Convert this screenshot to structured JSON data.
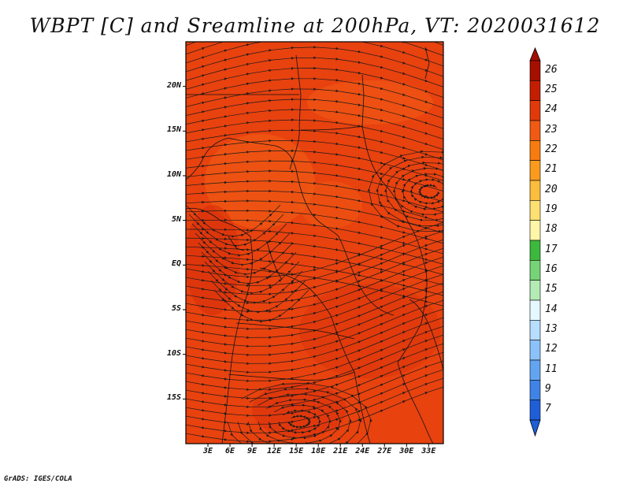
{
  "title": "WBPT [C] and Sreamline at 200hPa, VT: 2020031612",
  "credit": "GrADS: IGES/COLA",
  "map": {
    "lon_range": [
      0,
      35
    ],
    "lat_range": [
      -20,
      25
    ],
    "y_ticks": [
      {
        "value": 20,
        "label": "20N"
      },
      {
        "value": 15,
        "label": "15N"
      },
      {
        "value": 10,
        "label": "10N"
      },
      {
        "value": 5,
        "label": "5N"
      },
      {
        "value": 0,
        "label": "EQ"
      },
      {
        "value": -5,
        "label": "5S"
      },
      {
        "value": -10,
        "label": "10S"
      },
      {
        "value": -15,
        "label": "15S"
      }
    ],
    "x_ticks": [
      {
        "value": 3,
        "label": "3E"
      },
      {
        "value": 6,
        "label": "6E"
      },
      {
        "value": 9,
        "label": "9E"
      },
      {
        "value": 12,
        "label": "12E"
      },
      {
        "value": 15,
        "label": "15E"
      },
      {
        "value": 18,
        "label": "18E"
      },
      {
        "value": 21,
        "label": "21E"
      },
      {
        "value": 24,
        "label": "24E"
      },
      {
        "value": 27,
        "label": "27E"
      },
      {
        "value": 30,
        "label": "30E"
      },
      {
        "value": 33,
        "label": "33E"
      }
    ],
    "field_colors": {
      "base": "#e8420f",
      "warm": "#f05a14",
      "hot": "#d42a0a"
    },
    "streamline_color": "#1a1a1a"
  },
  "colorbar": {
    "labels": [
      "26",
      "25",
      "24",
      "23",
      "22",
      "21",
      "20",
      "19",
      "18",
      "17",
      "16",
      "15",
      "14",
      "13",
      "12",
      "11",
      "9",
      "7"
    ],
    "colors": [
      "#a50f00",
      "#c41e00",
      "#e03a0b",
      "#f05a14",
      "#f77c10",
      "#fa9b1e",
      "#fbbd3c",
      "#fde072",
      "#fff6a8",
      "#3cb83c",
      "#77d377",
      "#b4eab4",
      "#e6f8ff",
      "#b7ddff",
      "#8cc2fa",
      "#63a4f0",
      "#3f83e6",
      "#1e5fd8"
    ]
  }
}
